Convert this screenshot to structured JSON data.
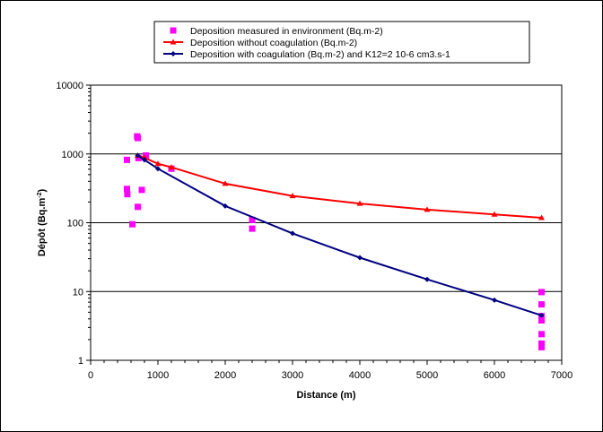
{
  "chart_data": {
    "type": "scatter",
    "title": "",
    "xlabel": "Distance (m)",
    "ylabel_main": "Dépôt (Bq.m",
    "ylabel_sup": "-2",
    "ylabel_close": ")",
    "xlim": [
      0,
      7000
    ],
    "ylim": [
      1,
      10000
    ],
    "yscale": "log",
    "xticks": [
      0,
      1000,
      2000,
      3000,
      4000,
      5000,
      6000,
      7000
    ],
    "xtick_labels": [
      "0",
      "1000",
      "2000",
      "3000",
      "4000",
      "5000",
      "6000",
      "7000"
    ],
    "yticks": [
      1,
      10,
      100,
      1000,
      10000
    ],
    "ytick_labels": [
      "1",
      "10",
      "100",
      "1000",
      "10000"
    ],
    "grid": "horizontal",
    "legend_position": "top",
    "series": [
      {
        "name": "Deposition measured in environment (Bq.m-2)",
        "kind": "scatter",
        "marker": "square",
        "color": "#ff00ff",
        "points": [
          [
            540,
            820
          ],
          [
            540,
            310
          ],
          [
            545,
            260
          ],
          [
            620,
            95
          ],
          [
            690,
            1800
          ],
          [
            700,
            1700
          ],
          [
            700,
            170
          ],
          [
            710,
            870
          ],
          [
            760,
            300
          ],
          [
            820,
            950
          ],
          [
            1200,
            610
          ],
          [
            2400,
            110
          ],
          [
            2400,
            82
          ],
          [
            6700,
            9.8
          ],
          [
            6700,
            6.5
          ],
          [
            6700,
            4.4
          ],
          [
            6700,
            3.8
          ],
          [
            6700,
            2.4
          ],
          [
            6700,
            1.75
          ],
          [
            6700,
            1.55
          ]
        ]
      },
      {
        "name": "Deposition without coagulation (Bq.m-2)",
        "kind": "line",
        "marker": "triangle",
        "color": "#ff0000",
        "points": [
          [
            700,
            950
          ],
          [
            800,
            880
          ],
          [
            1000,
            720
          ],
          [
            1200,
            640
          ],
          [
            2000,
            370
          ],
          [
            3000,
            245
          ],
          [
            4000,
            190
          ],
          [
            5000,
            155
          ],
          [
            6000,
            132
          ],
          [
            6700,
            118
          ]
        ]
      },
      {
        "name": "Deposition with coagulation (Bq.m-2) and K12=2 10-6 cm3.s-1",
        "kind": "line",
        "marker": "diamond",
        "color": "#000080",
        "points": [
          [
            700,
            950
          ],
          [
            800,
            820
          ],
          [
            1000,
            610
          ],
          [
            2000,
            175
          ],
          [
            3000,
            70
          ],
          [
            4000,
            31
          ],
          [
            5000,
            15
          ],
          [
            6000,
            7.5
          ],
          [
            6700,
            4.5
          ]
        ]
      }
    ]
  }
}
